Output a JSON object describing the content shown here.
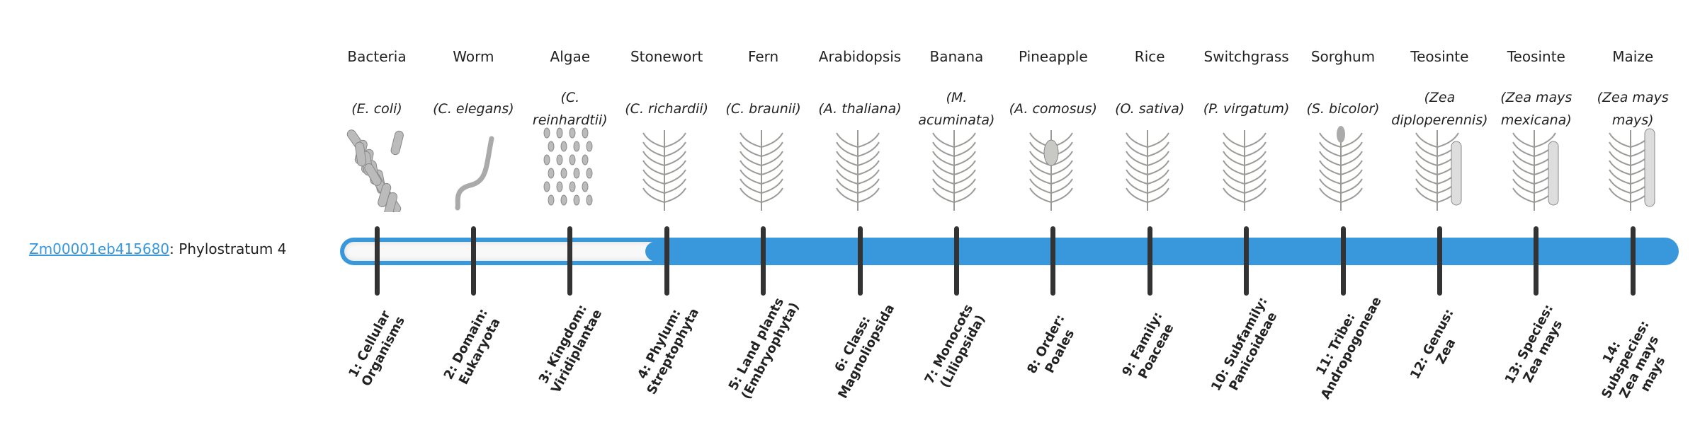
{
  "gene": {
    "id": "Zm00001eb415680",
    "suffix": ": Phylostratum 4"
  },
  "phylostratum": {
    "value": 4,
    "total": 14
  },
  "colors": {
    "bar": "#3898db",
    "tick": "#333333",
    "empty": "#f8f8f8",
    "link": "#3898db"
  },
  "organisms": [
    {
      "name": "Bacteria",
      "species": "(E. coli)",
      "icon": "bacteria-icon"
    },
    {
      "name": "Worm",
      "species": "(C. elegans)",
      "icon": "worm-icon"
    },
    {
      "name": "Algae",
      "species": "(C. reinhardtii)",
      "icon": "algae-icon"
    },
    {
      "name": "Stonewort",
      "species": "(C. richardii)",
      "icon": "stonewort-icon"
    },
    {
      "name": "Fern",
      "species": "(C. braunii)",
      "icon": "fern-icon"
    },
    {
      "name": "Arabidopsis",
      "species": "(A. thaliana)",
      "icon": "arabidopsis-icon"
    },
    {
      "name": "Banana",
      "species": "(M. acuminata)",
      "icon": "banana-icon"
    },
    {
      "name": "Pineapple",
      "species": "(A. comosus)",
      "icon": "pineapple-icon"
    },
    {
      "name": "Rice",
      "species": "(O. sativa)",
      "icon": "rice-icon"
    },
    {
      "name": "Switchgrass",
      "species": "(P. virgatum)",
      "icon": "switchgrass-icon"
    },
    {
      "name": "Sorghum",
      "species": "(S. bicolor)",
      "icon": "sorghum-icon"
    },
    {
      "name": "Teosinte",
      "species": "(Zea diploperennis)",
      "icon": "teosinte-icon"
    },
    {
      "name": "Teosinte",
      "species": "(Zea mays mexicana)",
      "icon": "teosinte-icon"
    },
    {
      "name": "Maize",
      "species": "(Zea mays mays)",
      "icon": "maize-icon"
    }
  ],
  "strata": [
    "1: Cellular Organisms",
    "2: Domain: Eukaryota",
    "3: Kingdom: Viridiplantae",
    "4: Phylum: Streptophyta",
    "5: Land plants (Embryophyta)",
    "6: Class: Magnoliopsida",
    "7: Monocots (Liliopsida)",
    "8: Order: Poales",
    "9: Family: Poaceae",
    "10: Subfamily: Panicoideae",
    "11: Tribe: Andropogoneae",
    "12: Genus: Zea",
    "13: Species: Zea mays",
    "14: Subspecies: Zea mays mays"
  ]
}
